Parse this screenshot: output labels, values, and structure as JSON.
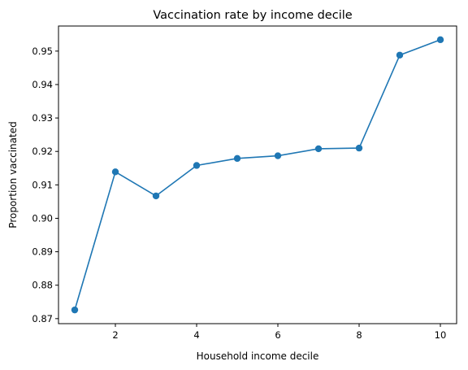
{
  "chart_data": {
    "type": "line",
    "title": "Vaccination rate by income decile",
    "xlabel": "Household income decile",
    "ylabel": "Proportion vaccinated",
    "xlim": [
      0.6,
      10.4
    ],
    "ylim": [
      0.8685,
      0.9575
    ],
    "xticks": [
      2,
      4,
      6,
      8,
      10
    ],
    "xtick_labels": [
      "2",
      "4",
      "6",
      "8",
      "10"
    ],
    "yticks": [
      0.87,
      0.88,
      0.89,
      0.9,
      0.91,
      0.92,
      0.93,
      0.94,
      0.95
    ],
    "ytick_labels": [
      "0.87",
      "0.88",
      "0.89",
      "0.90",
      "0.91",
      "0.92",
      "0.93",
      "0.94",
      "0.95"
    ],
    "grid": false,
    "series": [
      {
        "color": "#1f77b4",
        "marker": "circle",
        "x": [
          1,
          2,
          3,
          4,
          5,
          6,
          7,
          8,
          9,
          10
        ],
        "y": [
          0.8726,
          0.9139,
          0.9067,
          0.9158,
          0.9179,
          0.9187,
          0.9208,
          0.921,
          0.9488,
          0.9534
        ]
      }
    ]
  }
}
